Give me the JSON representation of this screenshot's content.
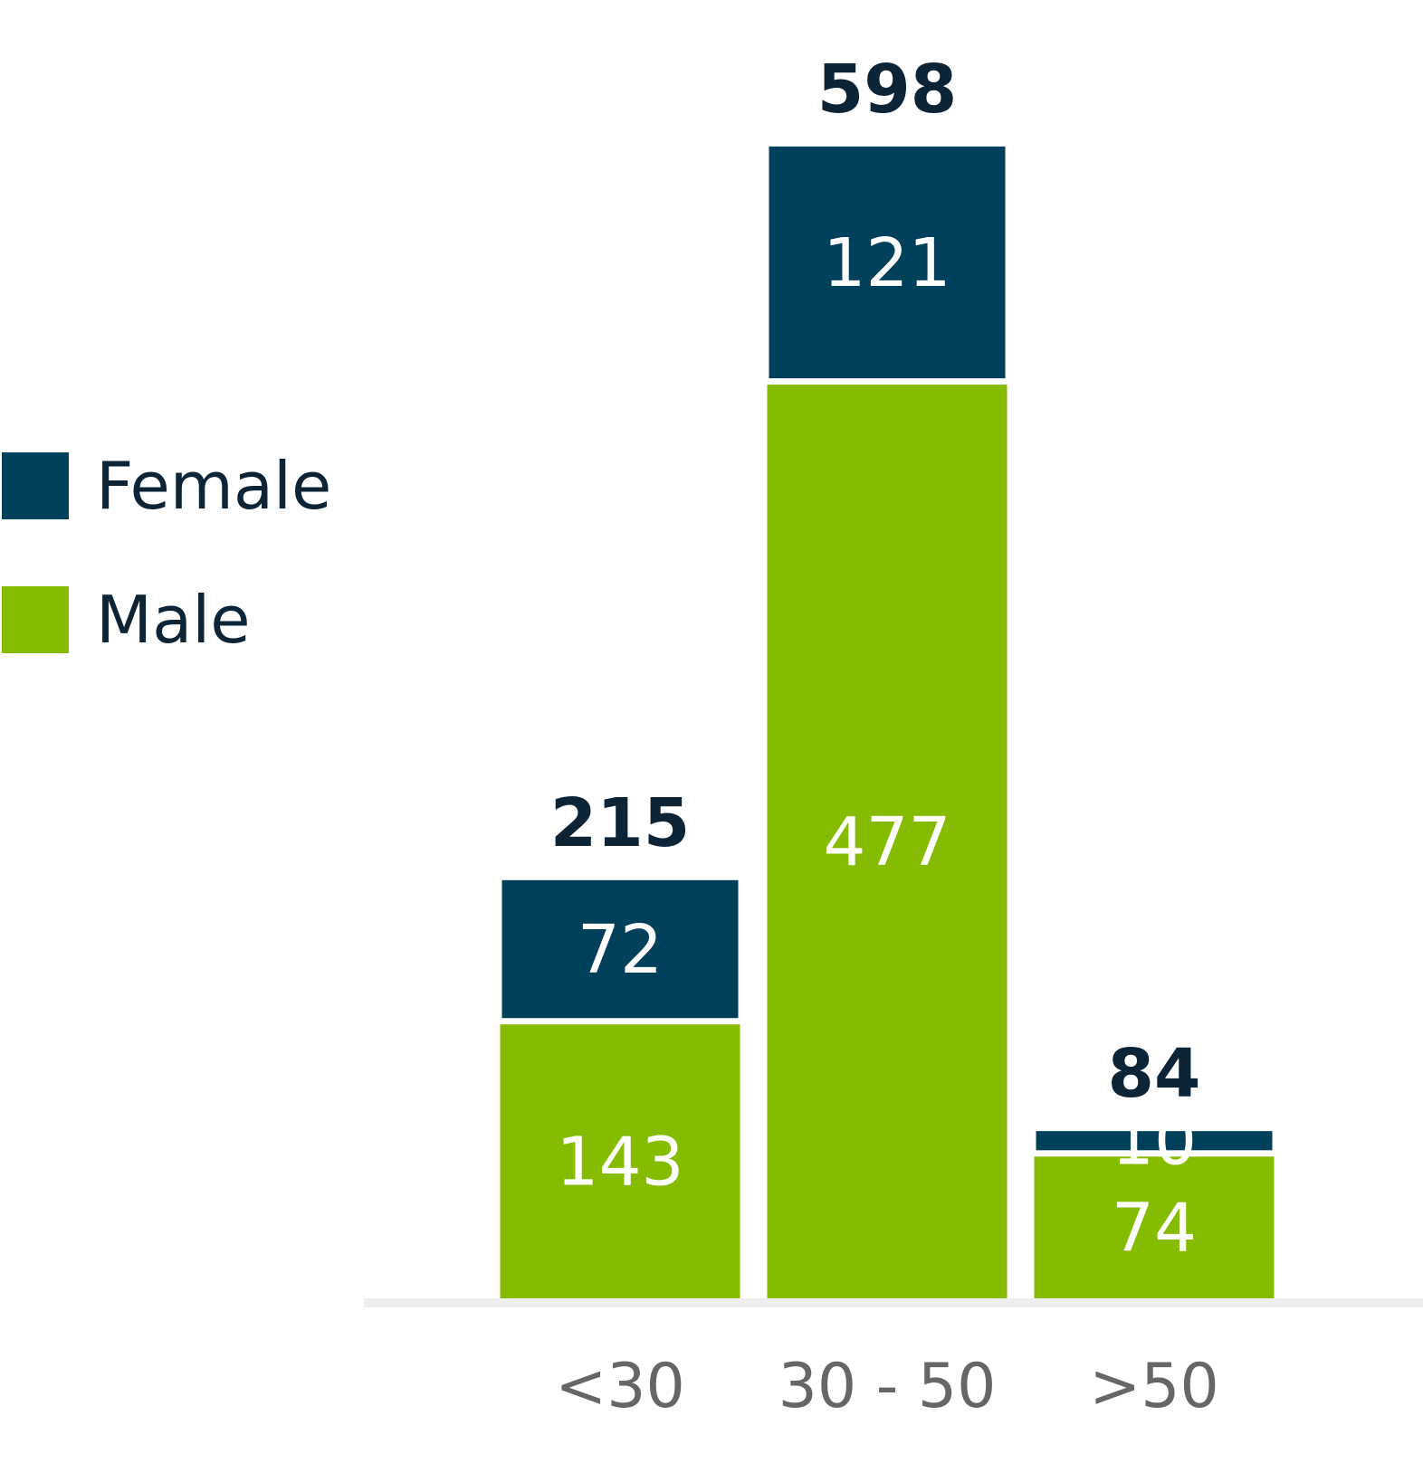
{
  "chart_data": {
    "type": "bar",
    "stacked": true,
    "categories": [
      "<30",
      "30 - 50",
      ">50"
    ],
    "series": [
      {
        "name": "Male",
        "values": [
          143,
          477,
          74
        ],
        "color": "#86bc00"
      },
      {
        "name": "Female",
        "values": [
          72,
          121,
          10
        ],
        "color": "#00405a"
      }
    ],
    "totals": [
      215,
      598,
      84
    ],
    "ylim": [
      0,
      640
    ],
    "legend_position": "left",
    "grid": false
  },
  "colors": {
    "female": "#00405a",
    "male": "#86bc00",
    "axis": "#eeeeee",
    "total_text": "#0d2336",
    "tick_text": "#666666",
    "value_text": "#ffffff"
  }
}
